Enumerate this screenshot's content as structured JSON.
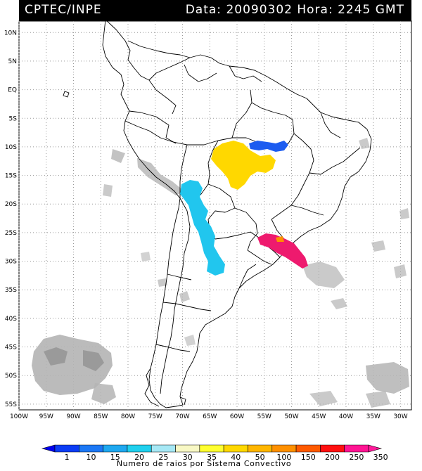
{
  "header": {
    "title": "CPTEC/INPE",
    "stamp": "Data: 20090302 Hora: 2245 GMT"
  },
  "map": {
    "lat_labels": [
      "10N",
      "5N",
      "EQ",
      "5S",
      "10S",
      "15S",
      "20S",
      "25S",
      "30S",
      "35S",
      "40S",
      "45S",
      "50S",
      "55S"
    ],
    "lon_labels": [
      "100W",
      "95W",
      "90W",
      "85W",
      "80W",
      "75W",
      "70W",
      "65W",
      "60W",
      "55W",
      "50W",
      "45W",
      "40W",
      "35W",
      "30W"
    ],
    "lon_range": [
      -100,
      -28
    ],
    "lat_range": [
      -56,
      12
    ],
    "grid": true,
    "colors": {
      "land_outline": "#000000",
      "background_clouds": "#b4b4b4",
      "grid": "#999999"
    }
  },
  "systems": [
    {
      "region": "Bolivia / Chile border",
      "color": "#21c6ee",
      "lightning_class": "20-25"
    },
    {
      "region": "Mato Grosso",
      "color": "#ffd800",
      "lightning_class": "40-50"
    },
    {
      "region": "Para / Tocantins",
      "color": "#1c5cf0",
      "lightning_class": "10-15"
    },
    {
      "region": "Parana / Santa Catarina",
      "color": "#ee1a6e",
      "lightning_class": "350"
    }
  ],
  "legend": {
    "values": [
      "1",
      "10",
      "15",
      "20",
      "25",
      "30",
      "35",
      "40",
      "50",
      "100",
      "150",
      "200",
      "250",
      "350"
    ],
    "colors": [
      "#0000f0",
      "#0b3cf5",
      "#1c78f5",
      "#1fa8f0",
      "#20d0ee",
      "#a6e8f5",
      "#f8f8c4",
      "#ffff30",
      "#ffd800",
      "#ffb600",
      "#ff9000",
      "#ff5a00",
      "#ff1010",
      "#ff1493",
      "#ff1a9a"
    ],
    "caption": "Numero de raios por Sistema Convectivo"
  }
}
